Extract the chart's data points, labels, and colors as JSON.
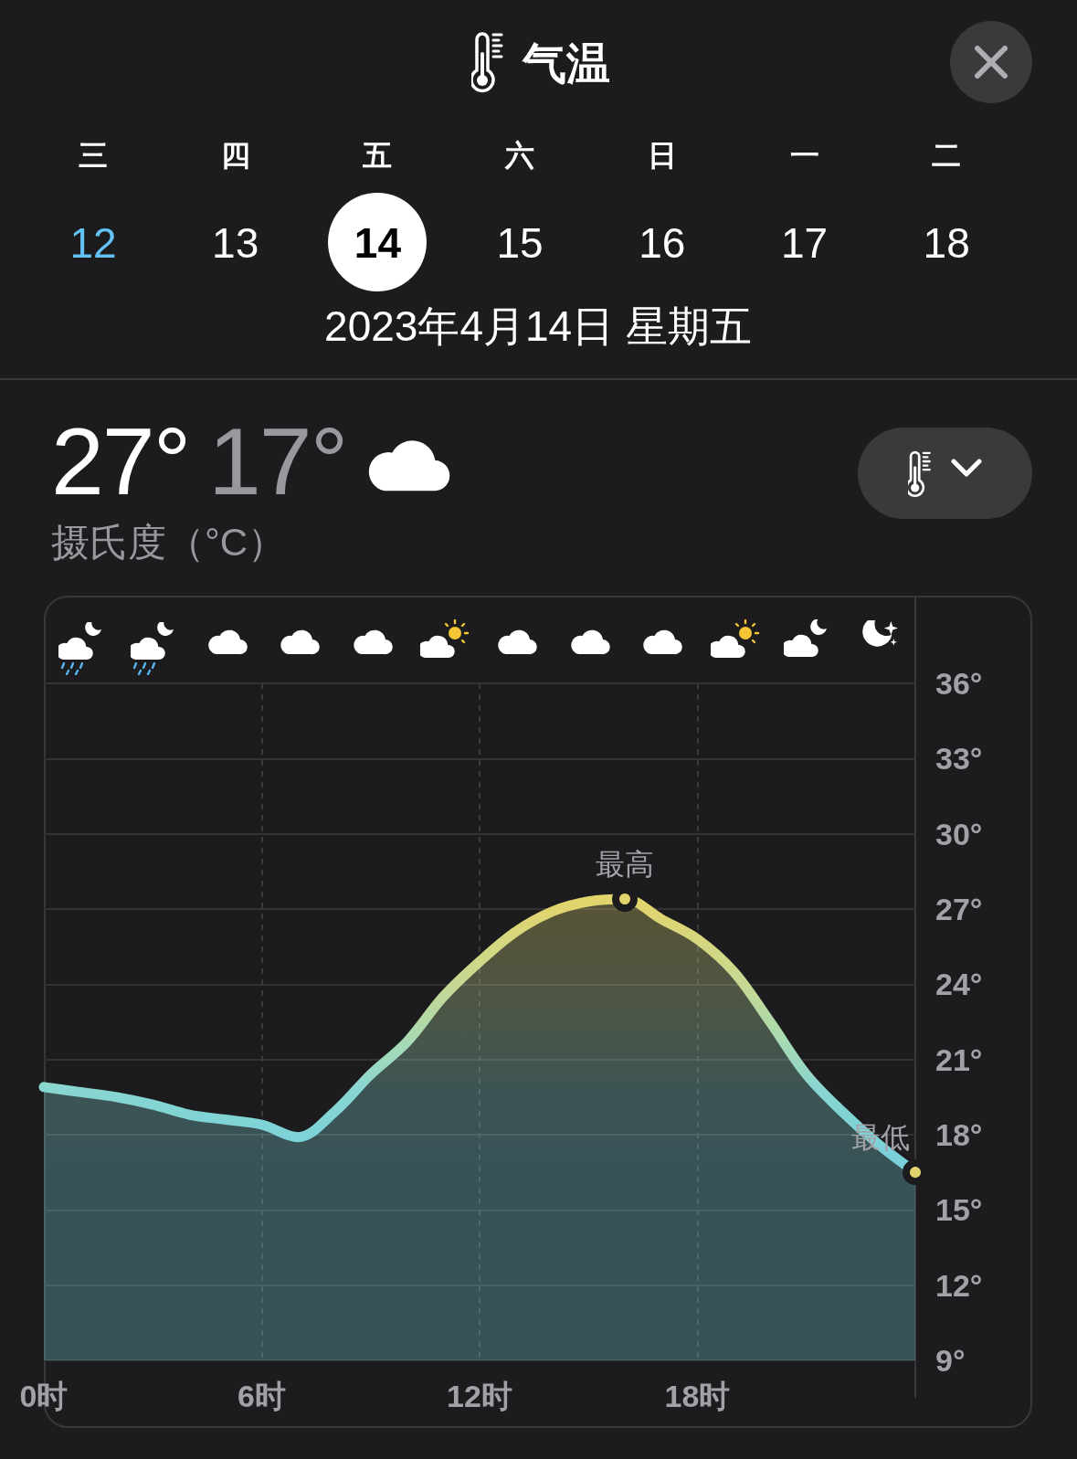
{
  "chart_data": {
    "type": "area",
    "title": "气温",
    "subtitle": "2023年4月14日 星期五",
    "x": [
      0,
      1,
      2,
      3,
      4,
      5,
      6,
      7,
      8,
      9,
      10,
      11,
      12,
      13,
      14,
      15,
      16,
      17,
      18,
      19,
      20,
      21,
      22,
      23,
      24
    ],
    "series": [
      {
        "values": [
          19.9,
          19.7,
          19.5,
          19.2,
          18.8,
          18.6,
          18.4,
          17.9,
          18.9,
          20.4,
          21.7,
          23.5,
          24.9,
          26.1,
          26.9,
          27.3,
          27.4,
          26.6,
          25.8,
          24.5,
          22.5,
          20.4,
          18.9,
          17.6,
          16.5
        ],
        "colors": [
          "#8ad6d0",
          "#88d6d1",
          "#86d5d2",
          "#84d5d3",
          "#82d4d4",
          "#80d4d5",
          "#7fd3d6",
          "#7dd3d7",
          "#82d4d4",
          "#94d7c6",
          "#a6dab4",
          "#c0d99a",
          "#cfd888",
          "#d9d67a",
          "#dfd571",
          "#e2d46c",
          "#e2d46c",
          "#ddd574",
          "#d6d67e",
          "#cbd88d",
          "#b3d9a7",
          "#94d7c6",
          "#82d4d4",
          "#7cd2d8",
          "#78d0db"
        ]
      },
      {
        "type": "scatter",
        "x": [
          16,
          24
        ],
        "values": [
          27.4,
          16.5
        ],
        "color": "#1c1c1e"
      }
    ],
    "xlim": [
      0,
      24
    ],
    "xticks": [
      {
        "value": 0,
        "label": "0时"
      },
      {
        "value": 6,
        "label": "6时"
      },
      {
        "value": 12,
        "label": "12时"
      },
      {
        "value": 18,
        "label": "18时"
      }
    ],
    "ylim": [
      9,
      36
    ],
    "yticks": [
      {
        "value": 9,
        "label": "9°"
      },
      {
        "value": 12,
        "label": "12°"
      },
      {
        "value": 15,
        "label": "15°"
      },
      {
        "value": 18,
        "label": "18°"
      },
      {
        "value": 21,
        "label": "21°"
      },
      {
        "value": 24,
        "label": "24°"
      },
      {
        "value": 27,
        "label": "27°"
      },
      {
        "value": 30,
        "label": "30°"
      },
      {
        "value": 33,
        "label": "33°"
      },
      {
        "value": 36,
        "label": "36°"
      }
    ],
    "grid": true,
    "annotations": [
      "三",
      "四",
      "五",
      "六",
      "日",
      "一",
      "二",
      "12",
      "13",
      "14",
      "15",
      "16",
      "17",
      "18",
      "27°",
      "17°",
      "摄氏度（°C）",
      {
        "text": "最高",
        "x": 16,
        "y": 27.4
      },
      {
        "text": "最低",
        "x": 24,
        "y": 16.5
      }
    ]
  }
}
